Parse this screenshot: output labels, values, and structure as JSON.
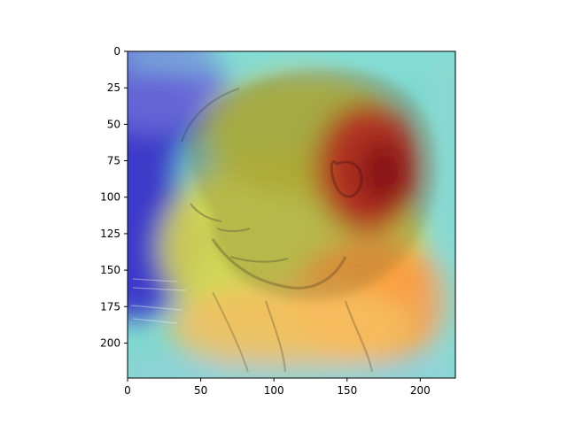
{
  "figure": {
    "kind": "image-with-heatmap-overlay",
    "subject": "sepia pencil sketch of a bearded man's head in profile facing left",
    "overlay_colormap": "jet",
    "overlay_alpha": 0.5,
    "hotspot": "ear region (red), secondary warm area lower right",
    "cool_region": "upper left / left edge (blue)"
  },
  "axes": {
    "xlim": [
      0,
      224
    ],
    "ylim": [
      224,
      0
    ],
    "x_ticks": [
      0,
      50,
      100,
      150,
      200
    ],
    "y_ticks": [
      0,
      25,
      50,
      75,
      100,
      125,
      150,
      175,
      200
    ],
    "x_tick_labels": [
      "0",
      "50",
      "100",
      "150",
      "200"
    ],
    "y_tick_labels": [
      "0",
      "25",
      "50",
      "75",
      "100",
      "125",
      "150",
      "175",
      "200"
    ]
  },
  "colors": {
    "paper": "#d8c9a8",
    "sketch": "#5a4a38",
    "heat_red": "#b4001a",
    "heat_orange": "#ff8a3a",
    "heat_yellow": "#e8e050",
    "heat_cyan": "#70e0c8",
    "heat_blue": "#2a2ac8"
  }
}
